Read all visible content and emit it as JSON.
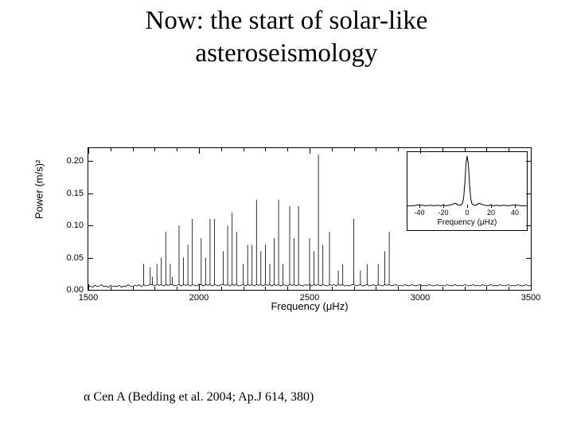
{
  "title_line1": "Now: the start of solar-like",
  "title_line2": "asteroseismology",
  "caption_prefix": "α",
  "caption_rest": " Cen A (Bedding et al. 2004; Ap.J  614, 380)",
  "main_chart": {
    "type": "line",
    "xlabel": "Frequency (μHz)",
    "ylabel": "Power (m/s)²",
    "xlim": [
      1500,
      3500
    ],
    "ylim": [
      0,
      0.22
    ],
    "xticks": [
      1500,
      2000,
      2500,
      3000,
      3500
    ],
    "yticks": [
      0.0,
      0.05,
      0.1,
      0.15,
      0.2
    ],
    "ytick_labels": [
      "0.00",
      "0.05",
      "0.10",
      "0.15",
      "0.20"
    ],
    "line_color": "#000000",
    "background_color": "#ffffff",
    "border_color": "#000000",
    "label_fontsize": 13,
    "tick_fontsize": 11,
    "minor_xticks_step": 100,
    "data": {
      "x": [
        1500,
        1510,
        1520,
        1530,
        1540,
        1550,
        1560,
        1570,
        1580,
        1590,
        1600,
        1610,
        1620,
        1630,
        1640,
        1650,
        1660,
        1670,
        1680,
        1690,
        1700,
        1710,
        1720,
        1730,
        1740,
        1750,
        1760,
        1770,
        1780,
        1790,
        1800,
        1810,
        1820,
        1830,
        1840,
        1850,
        1860,
        1870,
        1880,
        1890,
        1900,
        1910,
        1920,
        1930,
        1940,
        1950,
        1960,
        1970,
        1980,
        1990,
        2000,
        2010,
        2020,
        2030,
        2040,
        2050,
        2060,
        2070,
        2080,
        2090,
        2100,
        2110,
        2120,
        2130,
        2140,
        2150,
        2160,
        2170,
        2180,
        2190,
        2200,
        2210,
        2220,
        2230,
        2240,
        2250,
        2260,
        2270,
        2280,
        2290,
        2300,
        2310,
        2320,
        2330,
        2340,
        2350,
        2360,
        2370,
        2380,
        2390,
        2400,
        2410,
        2420,
        2430,
        2440,
        2450,
        2460,
        2470,
        2480,
        2490,
        2500,
        2510,
        2520,
        2530,
        2540,
        2550,
        2560,
        2570,
        2580,
        2590,
        2600,
        2610,
        2620,
        2630,
        2640,
        2650,
        2660,
        2670,
        2680,
        2690,
        2700,
        2710,
        2720,
        2730,
        2740,
        2750,
        2760,
        2770,
        2780,
        2790,
        2800,
        2810,
        2820,
        2830,
        2840,
        2850,
        2860,
        2870,
        2880,
        2890,
        2900,
        2910,
        2920,
        2930,
        2940,
        2950,
        2960,
        2970,
        2980,
        2990,
        3000,
        3010,
        3020,
        3030,
        3040,
        3050,
        3060,
        3070,
        3080,
        3090,
        3100,
        3110,
        3120,
        3130,
        3140,
        3150,
        3160,
        3170,
        3180,
        3190,
        3200,
        3210,
        3220,
        3230,
        3240,
        3250,
        3260,
        3270,
        3280,
        3290,
        3300,
        3310,
        3320,
        3330,
        3340,
        3350,
        3360,
        3370,
        3380,
        3390,
        3400,
        3410,
        3420,
        3430,
        3440,
        3450,
        3460,
        3470,
        3480,
        3490,
        3500
      ],
      "y": [
        0.005,
        0.006,
        0.004,
        0.007,
        0.005,
        0.006,
        0.008,
        0.005,
        0.006,
        0.004,
        0.007,
        0.005,
        0.006,
        0.005,
        0.007,
        0.004,
        0.006,
        0.005,
        0.008,
        0.006,
        0.005,
        0.007,
        0.006,
        0.008,
        0.005,
        0.04,
        0.006,
        0.007,
        0.035,
        0.02,
        0.006,
        0.04,
        0.007,
        0.05,
        0.006,
        0.09,
        0.007,
        0.04,
        0.02,
        0.006,
        0.007,
        0.1,
        0.006,
        0.05,
        0.007,
        0.07,
        0.006,
        0.11,
        0.007,
        0.006,
        0.01,
        0.08,
        0.006,
        0.05,
        0.007,
        0.11,
        0.006,
        0.11,
        0.007,
        0.006,
        0.008,
        0.06,
        0.007,
        0.1,
        0.006,
        0.12,
        0.007,
        0.09,
        0.006,
        0.007,
        0.04,
        0.006,
        0.07,
        0.007,
        0.07,
        0.006,
        0.14,
        0.007,
        0.06,
        0.006,
        0.07,
        0.007,
        0.04,
        0.006,
        0.08,
        0.007,
        0.14,
        0.006,
        0.04,
        0.007,
        0.006,
        0.13,
        0.007,
        0.08,
        0.006,
        0.13,
        0.007,
        0.006,
        0.008,
        0.007,
        0.08,
        0.006,
        0.06,
        0.007,
        0.21,
        0.006,
        0.07,
        0.007,
        0.006,
        0.09,
        0.007,
        0.008,
        0.006,
        0.03,
        0.007,
        0.04,
        0.006,
        0.007,
        0.006,
        0.008,
        0.11,
        0.006,
        0.007,
        0.03,
        0.006,
        0.007,
        0.04,
        0.006,
        0.007,
        0.008,
        0.006,
        0.04,
        0.007,
        0.006,
        0.06,
        0.007,
        0.09,
        0.006,
        0.007,
        0.008,
        0.006,
        0.007,
        0.006,
        0.008,
        0.007,
        0.006,
        0.008,
        0.007,
        0.006,
        0.007,
        0.008,
        0.006,
        0.007,
        0.006,
        0.008,
        0.007,
        0.006,
        0.007,
        0.008,
        0.006,
        0.007,
        0.006,
        0.008,
        0.007,
        0.006,
        0.007,
        0.008,
        0.006,
        0.007,
        0.006,
        0.008,
        0.007,
        0.006,
        0.007,
        0.008,
        0.006,
        0.007,
        0.006,
        0.008,
        0.007,
        0.006,
        0.007,
        0.008,
        0.006,
        0.007,
        0.006,
        0.008,
        0.007,
        0.006,
        0.007,
        0.008,
        0.006,
        0.007,
        0.006,
        0.008,
        0.007,
        0.006,
        0.007,
        0.008,
        0.006,
        0.007
      ]
    }
  },
  "inset_chart": {
    "type": "line",
    "xlabel": "Frequency (μHz)",
    "xlim": [
      -50,
      50
    ],
    "xticks": [
      -40,
      -20,
      0,
      20,
      40
    ],
    "xtick_labels": [
      "-40",
      "-20",
      "0",
      "20",
      "40"
    ],
    "line_color": "#000000",
    "background_color": "#ffffff",
    "data": {
      "x": [
        -50,
        -45,
        -40,
        -35,
        -30,
        -28,
        -25,
        -22,
        -20,
        -18,
        -15,
        -12,
        -10,
        -8,
        -6,
        -5,
        -4,
        -3,
        -2,
        -1,
        0,
        1,
        2,
        3,
        4,
        5,
        6,
        8,
        10,
        12,
        15,
        18,
        20,
        22,
        25,
        28,
        30,
        35,
        40,
        45,
        50
      ],
      "y": [
        0.04,
        0.04,
        0.06,
        0.04,
        0.05,
        0.04,
        0.05,
        0.04,
        0.06,
        0.04,
        0.05,
        0.07,
        0.09,
        0.06,
        0.05,
        0.06,
        0.08,
        0.18,
        0.45,
        0.85,
        1.0,
        0.85,
        0.45,
        0.18,
        0.08,
        0.06,
        0.05,
        0.06,
        0.09,
        0.07,
        0.05,
        0.04,
        0.06,
        0.04,
        0.05,
        0.04,
        0.05,
        0.04,
        0.06,
        0.04,
        0.04
      ]
    }
  }
}
